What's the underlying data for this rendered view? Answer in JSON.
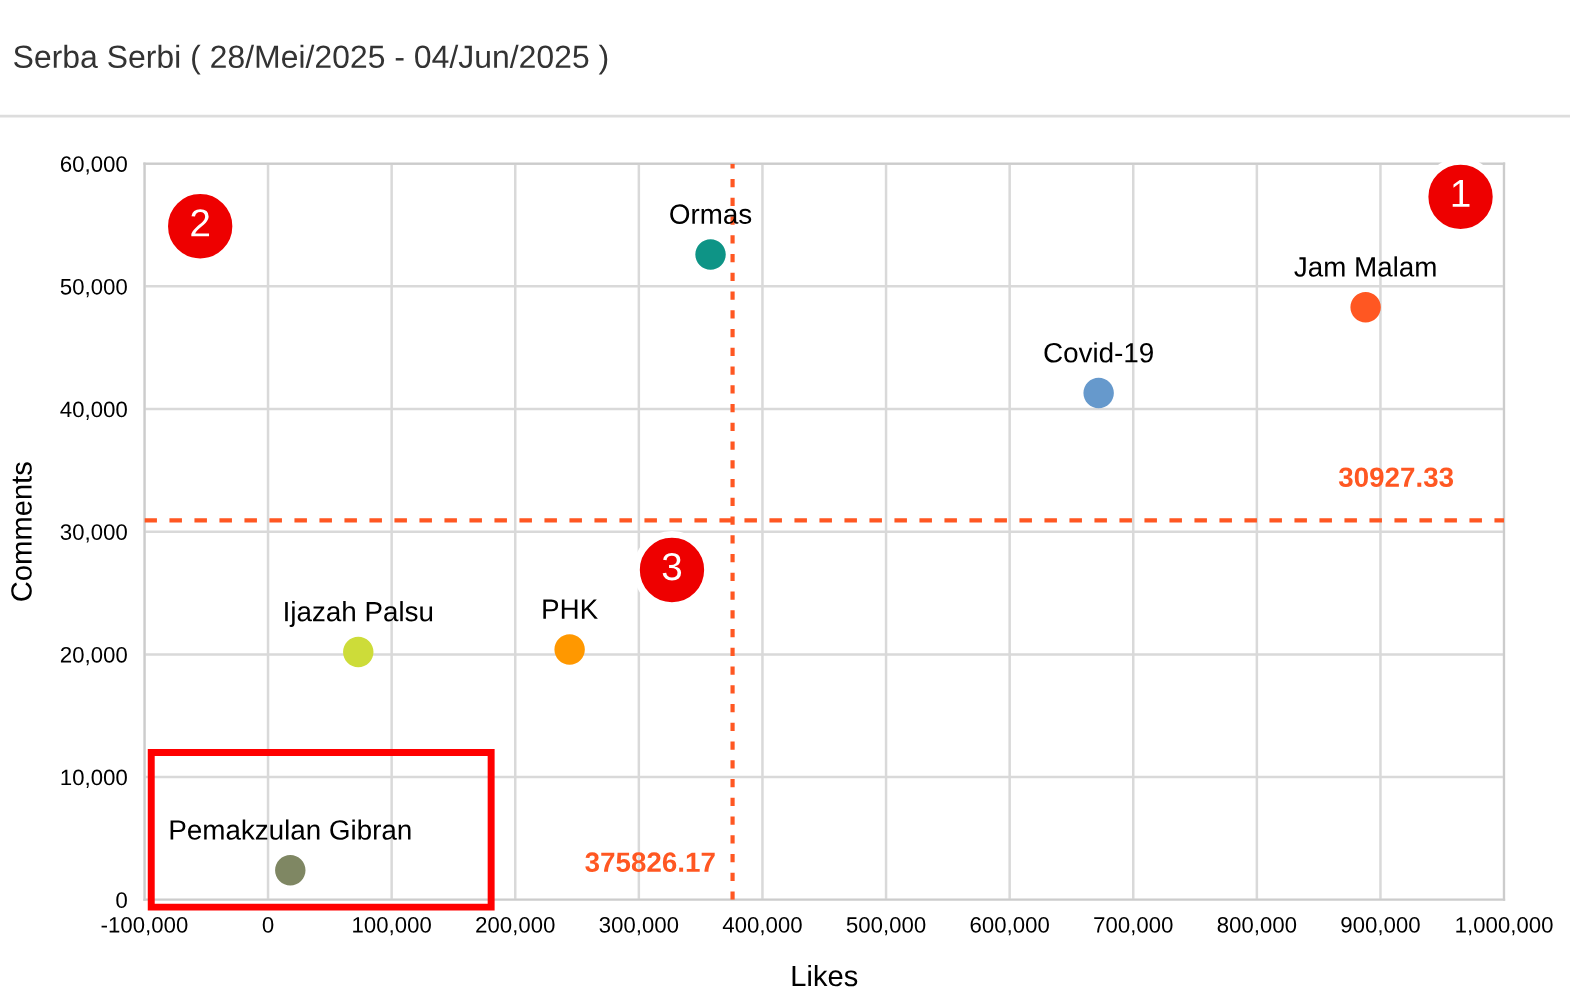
{
  "chart_data": {
    "type": "scatter",
    "title": "Serba Serbi ( 28/Mei/2025 - 04/Jun/2025 )",
    "xlabel": "Likes",
    "ylabel": "Comments",
    "series": [
      {
        "name": "Ormas",
        "color": "#0e9486",
        "x": [
          358000
        ],
        "values": [
          52600
        ]
      },
      {
        "name": "Jam Malam",
        "color": "#ff5722",
        "x": [
          888000
        ],
        "values": [
          48300
        ]
      },
      {
        "name": "Covid-19",
        "color": "#6699cc",
        "x": [
          672000
        ],
        "values": [
          41300
        ]
      },
      {
        "name": "Ijazah Palsu",
        "color": "#cddc39",
        "x": [
          73000
        ],
        "values": [
          20200
        ]
      },
      {
        "name": "PHK",
        "color": "#ff9800",
        "x": [
          244000
        ],
        "values": [
          20400
        ]
      },
      {
        "name": "Pemakzulan Gibran",
        "color": "#7f8763",
        "x": [
          18000
        ],
        "values": [
          2400
        ]
      }
    ],
    "xlim": [
      -100000,
      1000000
    ],
    "xticks": [
      {
        "value": -100000,
        "label": "-100,000"
      },
      {
        "value": 0,
        "label": "0"
      },
      {
        "value": 100000,
        "label": "100,000"
      },
      {
        "value": 200000,
        "label": "200,000"
      },
      {
        "value": 300000,
        "label": "300,000"
      },
      {
        "value": 400000,
        "label": "400,000"
      },
      {
        "value": 500000,
        "label": "500,000"
      },
      {
        "value": 600000,
        "label": "600,000"
      },
      {
        "value": 700000,
        "label": "700,000"
      },
      {
        "value": 800000,
        "label": "800,000"
      },
      {
        "value": 900000,
        "label": "900,000"
      },
      {
        "value": 1000000,
        "label": "1,000,000"
      }
    ],
    "ylim": [
      0,
      60000
    ],
    "yticks": [
      {
        "value": 0,
        "label": "0"
      },
      {
        "value": 10000,
        "label": "10,000"
      },
      {
        "value": 20000,
        "label": "20,000"
      },
      {
        "value": 30000,
        "label": "30,000"
      },
      {
        "value": 40000,
        "label": "40,000"
      },
      {
        "value": 50000,
        "label": "50,000"
      },
      {
        "value": 60000,
        "label": "60,000"
      }
    ],
    "ref_lines": [
      {
        "axis": "x",
        "value": 375826.17,
        "label": "375826.17",
        "color": "#ff5722",
        "line_style": "dotted"
      },
      {
        "axis": "y",
        "value": 30927.33,
        "label": "30927.33",
        "color": "#ff5722",
        "line_style": "dashed"
      }
    ],
    "annotations": [
      "1",
      "2",
      "3"
    ],
    "grid": true,
    "legend": false,
    "marker": "circle"
  }
}
